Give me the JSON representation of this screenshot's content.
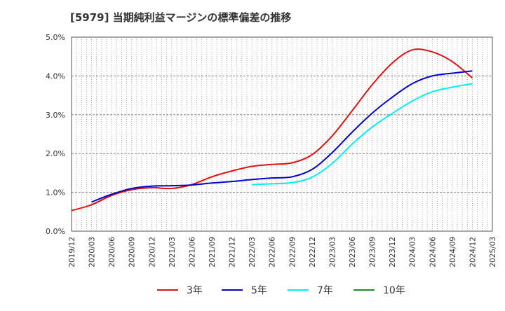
{
  "chart_data": {
    "type": "line",
    "title": "[5979]  当期純利益マージンの標準偏差の推移",
    "xlabel": "",
    "ylabel": "",
    "ylim": [
      0,
      5.0
    ],
    "y_ticks": [
      "0.0%",
      "1.0%",
      "2.0%",
      "3.0%",
      "4.0%",
      "5.0%"
    ],
    "x": [
      "2019/12",
      "2020/03",
      "2020/06",
      "2020/09",
      "2020/12",
      "2021/03",
      "2021/06",
      "2021/09",
      "2021/12",
      "2022/03",
      "2022/06",
      "2022/09",
      "2022/12",
      "2023/03",
      "2023/06",
      "2023/09",
      "2023/12",
      "2024/03",
      "2024/06",
      "2024/09",
      "2024/12",
      "2025/03"
    ],
    "grid": true,
    "legend_position": "bottom",
    "series": [
      {
        "name": "3年",
        "color": "#dd1111",
        "values": [
          0.53,
          0.68,
          0.92,
          1.07,
          1.12,
          1.1,
          1.2,
          1.4,
          1.55,
          1.67,
          1.72,
          1.76,
          1.97,
          2.45,
          3.1,
          3.77,
          4.33,
          4.67,
          4.62,
          4.37,
          3.95,
          null
        ]
      },
      {
        "name": "5年",
        "color": "#0000cc",
        "values": [
          null,
          0.75,
          0.95,
          1.1,
          1.16,
          1.17,
          1.19,
          1.24,
          1.28,
          1.33,
          1.37,
          1.4,
          1.59,
          2.02,
          2.55,
          3.04,
          3.45,
          3.8,
          4.0,
          4.07,
          4.13,
          null
        ]
      },
      {
        "name": "7年",
        "color": "#00eeee",
        "values": [
          null,
          null,
          null,
          null,
          null,
          null,
          null,
          null,
          null,
          1.2,
          1.22,
          1.25,
          1.39,
          1.74,
          2.24,
          2.68,
          3.03,
          3.35,
          3.59,
          3.71,
          3.8,
          null
        ]
      },
      {
        "name": "10年",
        "color": "#228b22",
        "values": [
          null,
          null,
          null,
          null,
          null,
          null,
          null,
          null,
          null,
          null,
          null,
          null,
          null,
          null,
          null,
          null,
          null,
          null,
          null,
          null,
          null,
          null
        ]
      }
    ]
  }
}
